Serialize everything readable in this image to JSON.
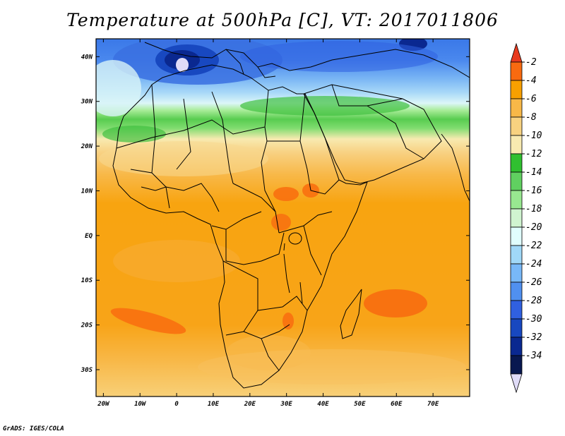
{
  "title": "Temperature at 500hPa [C], VT: 2017011806",
  "credit": "GrADS: IGES/COLA",
  "map": {
    "lon_range": [
      -22,
      80
    ],
    "lat_range": [
      -36,
      44
    ],
    "lon_ticks": [
      {
        "value": -20,
        "label": "20W"
      },
      {
        "value": -10,
        "label": "10W"
      },
      {
        "value": 0,
        "label": "0"
      },
      {
        "value": 10,
        "label": "10E"
      },
      {
        "value": 20,
        "label": "20E"
      },
      {
        "value": 30,
        "label": "30E"
      },
      {
        "value": 40,
        "label": "40E"
      },
      {
        "value": 50,
        "label": "50E"
      },
      {
        "value": 60,
        "label": "60E"
      },
      {
        "value": 70,
        "label": "70E"
      }
    ],
    "lat_ticks": [
      {
        "value": 40,
        "label": "40N"
      },
      {
        "value": 30,
        "label": "30N"
      },
      {
        "value": 20,
        "label": "20N"
      },
      {
        "value": 10,
        "label": "10N"
      },
      {
        "value": 0,
        "label": "EQ"
      },
      {
        "value": -10,
        "label": "10S"
      },
      {
        "value": -20,
        "label": "20S"
      },
      {
        "value": -30,
        "label": "30S"
      }
    ]
  },
  "colorbar": {
    "labels": [
      "-2",
      "-4",
      "-6",
      "-8",
      "-10",
      "-12",
      "-14",
      "-16",
      "-18",
      "-20",
      "-22",
      "-24",
      "-26",
      "-28",
      "-30",
      "-32",
      "-34"
    ],
    "colors": [
      "#e83a1e",
      "#f86a10",
      "#f8a000",
      "#f8b848",
      "#f8d280",
      "#f8eab0",
      "#30c030",
      "#60d060",
      "#98e890",
      "#d0f4d0",
      "#e0fefe",
      "#a0d8f8",
      "#78b8f8",
      "#5090f0",
      "#3060e0",
      "#1848c0",
      "#0a2890",
      "#081850",
      "#e0dcf8"
    ]
  }
}
